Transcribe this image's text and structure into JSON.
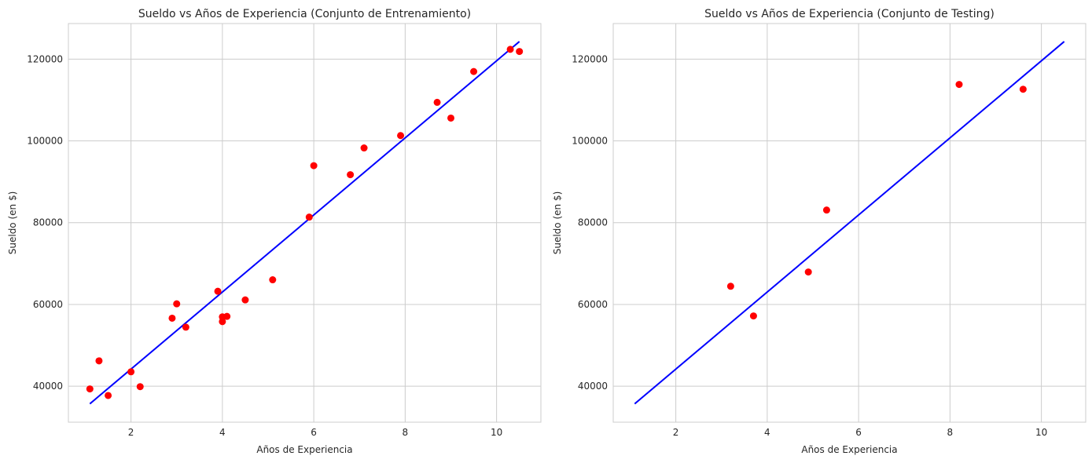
{
  "chart_data": [
    {
      "type": "scatter",
      "title": "Sueldo vs Años de Experiencia (Conjunto de Entrenamiento)",
      "xlabel": "Años de Experiencia",
      "ylabel": "Sueldo (en $)",
      "xlim": [
        0.63,
        10.97
      ],
      "ylim": [
        31200,
        128700
      ],
      "xticks": [
        2,
        4,
        6,
        8,
        10
      ],
      "yticks": [
        40000,
        60000,
        80000,
        100000,
        120000
      ],
      "grid": true,
      "legend": "none",
      "points": {
        "color": "#ff0000",
        "x": [
          1.1,
          1.3,
          1.5,
          2.0,
          2.2,
          2.9,
          3.0,
          3.2,
          3.9,
          4.0,
          4.0,
          4.1,
          4.5,
          5.1,
          5.9,
          6.0,
          6.8,
          7.1,
          7.9,
          8.7,
          9.0,
          9.5,
          10.3,
          10.5
        ],
        "y": [
          39343,
          46205,
          37731,
          43525,
          39891,
          56642,
          60150,
          54445,
          63218,
          55794,
          56957,
          57081,
          61111,
          66029,
          81363,
          93940,
          91738,
          98273,
          101302,
          109431,
          105582,
          116969,
          122391,
          121872
        ]
      },
      "regression_line": {
        "color": "#0000ff",
        "x": [
          1.1,
          10.5
        ],
        "y": [
          35700,
          124300
        ]
      }
    },
    {
      "type": "scatter",
      "title": "Sueldo vs Años de Experiencia (Conjunto de Testing)",
      "xlabel": "Años de Experiencia",
      "ylabel": "Sueldo (en $)",
      "xlim": [
        0.63,
        10.97
      ],
      "ylim": [
        31200,
        128700
      ],
      "xticks": [
        2,
        4,
        6,
        8,
        10
      ],
      "yticks": [
        40000,
        60000,
        80000,
        100000,
        120000
      ],
      "grid": true,
      "legend": "none",
      "points": {
        "color": "#ff0000",
        "x": [
          3.2,
          3.7,
          4.9,
          5.3,
          8.2,
          9.6
        ],
        "y": [
          64445,
          57189,
          67938,
          83088,
          113812,
          112635
        ]
      },
      "regression_line": {
        "color": "#0000ff",
        "x": [
          1.1,
          10.5
        ],
        "y": [
          35700,
          124300
        ]
      }
    }
  ]
}
